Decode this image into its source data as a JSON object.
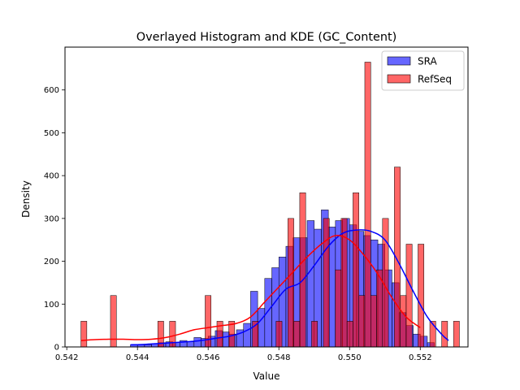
{
  "chart_data": {
    "type": "bar",
    "title": "Overlayed Histogram and KDE (GC_Content)",
    "xlabel": "Value",
    "ylabel": "Density",
    "xlim": [
      0.54195,
      0.55335
    ],
    "ylim": [
      0,
      700
    ],
    "xticks": [
      0.542,
      0.544,
      0.546,
      0.548,
      0.55,
      0.552
    ],
    "xtick_labels": [
      "0.542",
      "0.544",
      "0.546",
      "0.548",
      "0.550",
      "0.552"
    ],
    "yticks": [
      0,
      100,
      200,
      300,
      400,
      500,
      600
    ],
    "ytick_labels": [
      "0",
      "100",
      "200",
      "300",
      "400",
      "500",
      "600"
    ],
    "grid": false,
    "legend_position": "top-right",
    "series": [
      {
        "name": "SRA",
        "kind": "histogram",
        "color": "#0000ff",
        "bin_start": 0.5438,
        "bin_width": 0.0002,
        "values": [
          5,
          5,
          5,
          8,
          10,
          12,
          10,
          15,
          12,
          22,
          20,
          25,
          38,
          35,
          30,
          40,
          55,
          130,
          90,
          160,
          185,
          210,
          235,
          255,
          255,
          295,
          275,
          320,
          280,
          295,
          300,
          285,
          270,
          260,
          250,
          240,
          180,
          150,
          80,
          50,
          30,
          25,
          10
        ]
      },
      {
        "name": "RefSeq",
        "kind": "histogram",
        "color": "#ff0000",
        "bin_start": 0.5424,
        "bin_width": 0.0001673,
        "values": [
          60,
          0,
          0,
          0,
          0,
          120,
          0,
          0,
          0,
          0,
          0,
          0,
          0,
          60,
          0,
          60,
          0,
          0,
          0,
          0,
          0,
          120,
          0,
          60,
          0,
          60,
          0,
          0,
          0,
          60,
          0,
          0,
          0,
          60,
          0,
          300,
          60,
          360,
          0,
          60,
          0,
          300,
          0,
          180,
          300,
          60,
          360,
          120,
          665,
          120,
          180,
          300,
          0,
          420,
          120,
          240,
          0,
          240,
          0,
          60,
          0,
          60,
          0,
          60
        ]
      },
      {
        "name": "SRA",
        "kind": "kde",
        "color": "#0000ff",
        "x": [
          0.5438,
          0.5442,
          0.5446,
          0.545,
          0.5454,
          0.5458,
          0.5462,
          0.5466,
          0.547,
          0.5474,
          0.5478,
          0.5482,
          0.5486,
          0.549,
          0.5494,
          0.5498,
          0.5502,
          0.5506,
          0.551,
          0.5514,
          0.5518,
          0.5522,
          0.5526,
          0.5528
        ],
        "y": [
          5,
          6,
          8,
          10,
          12,
          15,
          20,
          25,
          35,
          55,
          95,
          135,
          150,
          190,
          235,
          265,
          273,
          270,
          250,
          195,
          130,
          70,
          30,
          15
        ]
      },
      {
        "name": "RefSeq",
        "kind": "kde",
        "color": "#ff0000",
        "x": [
          0.5424,
          0.5428,
          0.5432,
          0.5436,
          0.544,
          0.5444,
          0.5448,
          0.5452,
          0.5456,
          0.546,
          0.5464,
          0.5468,
          0.5472,
          0.5476,
          0.548,
          0.5484,
          0.5488,
          0.5492,
          0.5496,
          0.55,
          0.5504,
          0.5508,
          0.5512,
          0.5516,
          0.552
        ],
        "y": [
          15,
          17,
          18,
          18,
          17,
          18,
          22,
          30,
          40,
          45,
          50,
          55,
          70,
          105,
          140,
          175,
          210,
          240,
          260,
          250,
          215,
          170,
          115,
          70,
          45
        ]
      }
    ]
  }
}
